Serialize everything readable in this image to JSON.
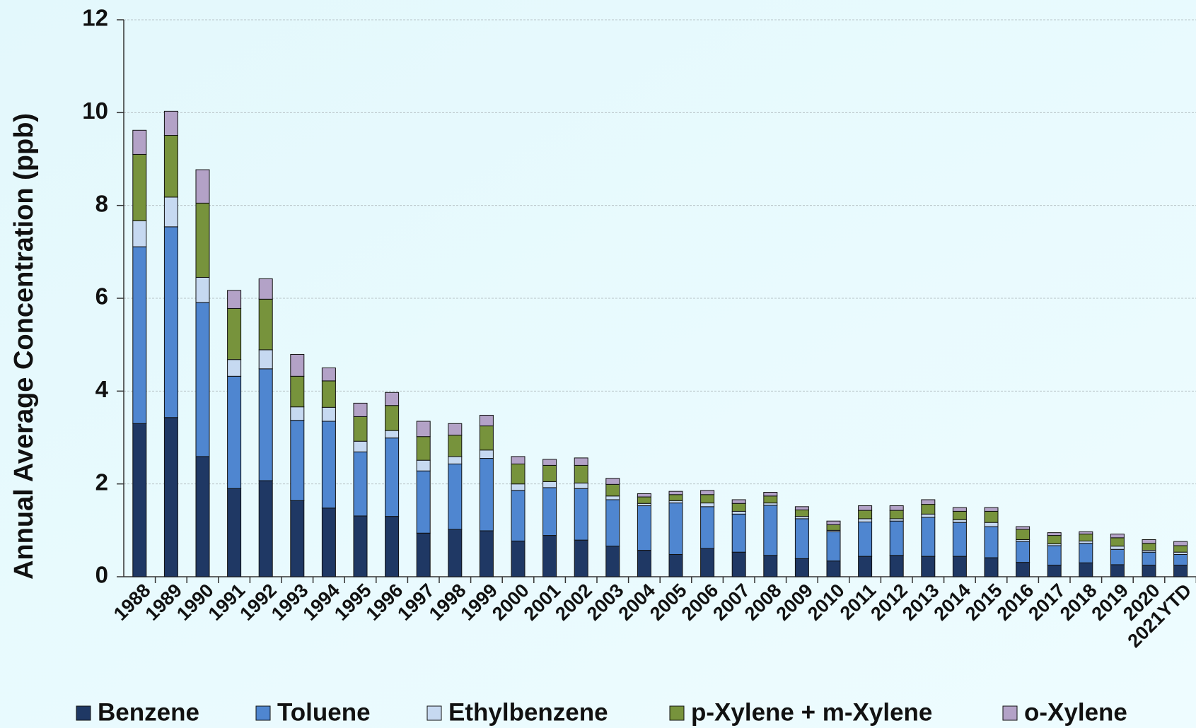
{
  "chart_data": {
    "type": "bar",
    "stacked": true,
    "y_label": "Annual Average Concentration (ppb)",
    "categories": [
      "1988",
      "1989",
      "1990",
      "1991",
      "1992",
      "1993",
      "1994",
      "1995",
      "1996",
      "1997",
      "1998",
      "1999",
      "2000",
      "2001",
      "2002",
      "2003",
      "2004",
      "2005",
      "2006",
      "2007",
      "2008",
      "2009",
      "2010",
      "2011",
      "2012",
      "2013",
      "2014",
      "2015",
      "2016",
      "2017",
      "2018",
      "2019",
      "2020",
      "2021YTD"
    ],
    "series": [
      {
        "name": "Benzene",
        "color": "#1f3864",
        "values": [
          3.3,
          3.43,
          2.59,
          1.9,
          2.07,
          1.64,
          1.48,
          1.31,
          1.3,
          0.94,
          1.02,
          0.99,
          0.77,
          0.89,
          0.79,
          0.66,
          0.57,
          0.48,
          0.61,
          0.53,
          0.46,
          0.39,
          0.34,
          0.44,
          0.46,
          0.44,
          0.44,
          0.41,
          0.31,
          0.25,
          0.3,
          0.26,
          0.25,
          0.25
        ]
      },
      {
        "name": "Toluene",
        "color": "#4f86d0",
        "values": [
          3.81,
          4.11,
          3.32,
          2.42,
          2.41,
          1.73,
          1.87,
          1.38,
          1.69,
          1.34,
          1.41,
          1.56,
          1.09,
          1.03,
          1.11,
          1.0,
          0.96,
          1.11,
          0.9,
          0.82,
          1.08,
          0.86,
          0.63,
          0.74,
          0.74,
          0.84,
          0.73,
          0.67,
          0.45,
          0.42,
          0.42,
          0.33,
          0.28,
          0.23
        ]
      },
      {
        "name": "Ethylbenzene",
        "color": "#c6d9f1",
        "values": [
          0.56,
          0.64,
          0.54,
          0.36,
          0.41,
          0.29,
          0.3,
          0.23,
          0.16,
          0.23,
          0.16,
          0.18,
          0.14,
          0.13,
          0.12,
          0.08,
          0.05,
          0.05,
          0.08,
          0.06,
          0.05,
          0.05,
          0.03,
          0.07,
          0.05,
          0.07,
          0.06,
          0.09,
          0.04,
          0.04,
          0.05,
          0.07,
          0.04,
          0.05
        ]
      },
      {
        "name": "p-Xylene + m-Xylene",
        "color": "#77933c",
        "values": [
          1.43,
          1.33,
          1.6,
          1.1,
          1.09,
          0.66,
          0.57,
          0.53,
          0.54,
          0.51,
          0.46,
          0.52,
          0.43,
          0.35,
          0.38,
          0.25,
          0.14,
          0.13,
          0.18,
          0.17,
          0.15,
          0.14,
          0.12,
          0.18,
          0.18,
          0.21,
          0.18,
          0.24,
          0.22,
          0.18,
          0.15,
          0.18,
          0.15,
          0.14
        ]
      },
      {
        "name": "o-Xylene",
        "color": "#b3a2c7",
        "values": [
          0.52,
          0.52,
          0.72,
          0.39,
          0.44,
          0.47,
          0.28,
          0.29,
          0.28,
          0.33,
          0.25,
          0.23,
          0.16,
          0.13,
          0.16,
          0.13,
          0.07,
          0.07,
          0.09,
          0.08,
          0.08,
          0.07,
          0.08,
          0.1,
          0.1,
          0.1,
          0.08,
          0.08,
          0.06,
          0.06,
          0.05,
          0.08,
          0.08,
          0.09
        ]
      }
    ],
    "ylim": [
      0,
      12
    ],
    "yticks": [
      0,
      2,
      4,
      6,
      8,
      10,
      12
    ],
    "grid": true,
    "legend": "bottom"
  }
}
